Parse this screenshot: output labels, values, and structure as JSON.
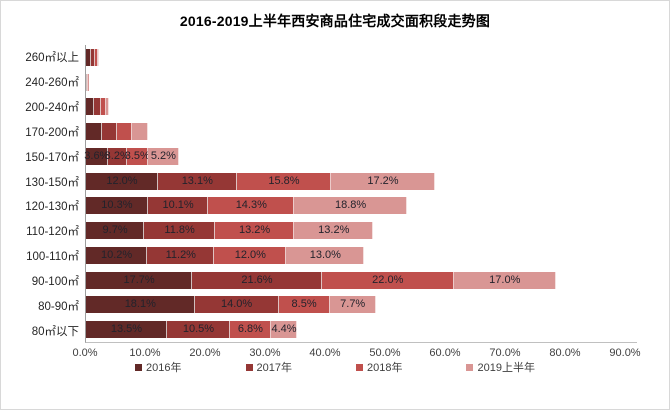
{
  "title": "2016-2019上半年西安商品住宅成交面积段走势图",
  "chart_data": {
    "type": "bar",
    "stacked": true,
    "orientation": "horizontal",
    "unit": "%",
    "categories": [
      "260㎡以上",
      "240-260㎡",
      "200-240㎡",
      "170-200㎡",
      "150-170㎡",
      "130-150㎡",
      "120-130㎡",
      "110-120㎡",
      "100-110㎡",
      "90-100㎡",
      "80-90㎡",
      "80㎡以下"
    ],
    "series": [
      {
        "name": "2016年",
        "color": "#622927",
        "values": [
          0.9,
          0.1,
          1.3,
          2.6,
          3.6,
          12.0,
          10.3,
          9.7,
          10.2,
          17.7,
          18.1,
          13.5
        ]
      },
      {
        "name": "2017年",
        "color": "#953735",
        "values": [
          0.6,
          0.1,
          1.2,
          2.6,
          3.2,
          13.1,
          10.1,
          11.8,
          11.2,
          21.6,
          14.0,
          10.5
        ]
      },
      {
        "name": "2018年",
        "color": "#C0504D",
        "values": [
          0.5,
          0.1,
          0.8,
          2.5,
          3.5,
          15.8,
          14.3,
          13.2,
          12.0,
          22.0,
          8.5,
          6.8
        ]
      },
      {
        "name": "2019上半年",
        "color": "#D99694",
        "values": [
          0.2,
          0.1,
          0.6,
          2.6,
          5.2,
          17.2,
          18.8,
          13.2,
          13.0,
          17.0,
          7.7,
          4.4
        ]
      }
    ],
    "labels_visible_per_category": [
      false,
      false,
      false,
      false,
      true,
      true,
      true,
      true,
      true,
      true,
      true,
      true
    ],
    "x_axis": {
      "min": 0,
      "max": 90,
      "tick_step": 10,
      "tick_labels": [
        "0.0%",
        "10.0%",
        "20.0%",
        "30.0%",
        "40.0%",
        "50.0%",
        "60.0%",
        "70.0%",
        "80.0%",
        "90.0%"
      ]
    },
    "legend_position": "bottom",
    "grid": false
  }
}
